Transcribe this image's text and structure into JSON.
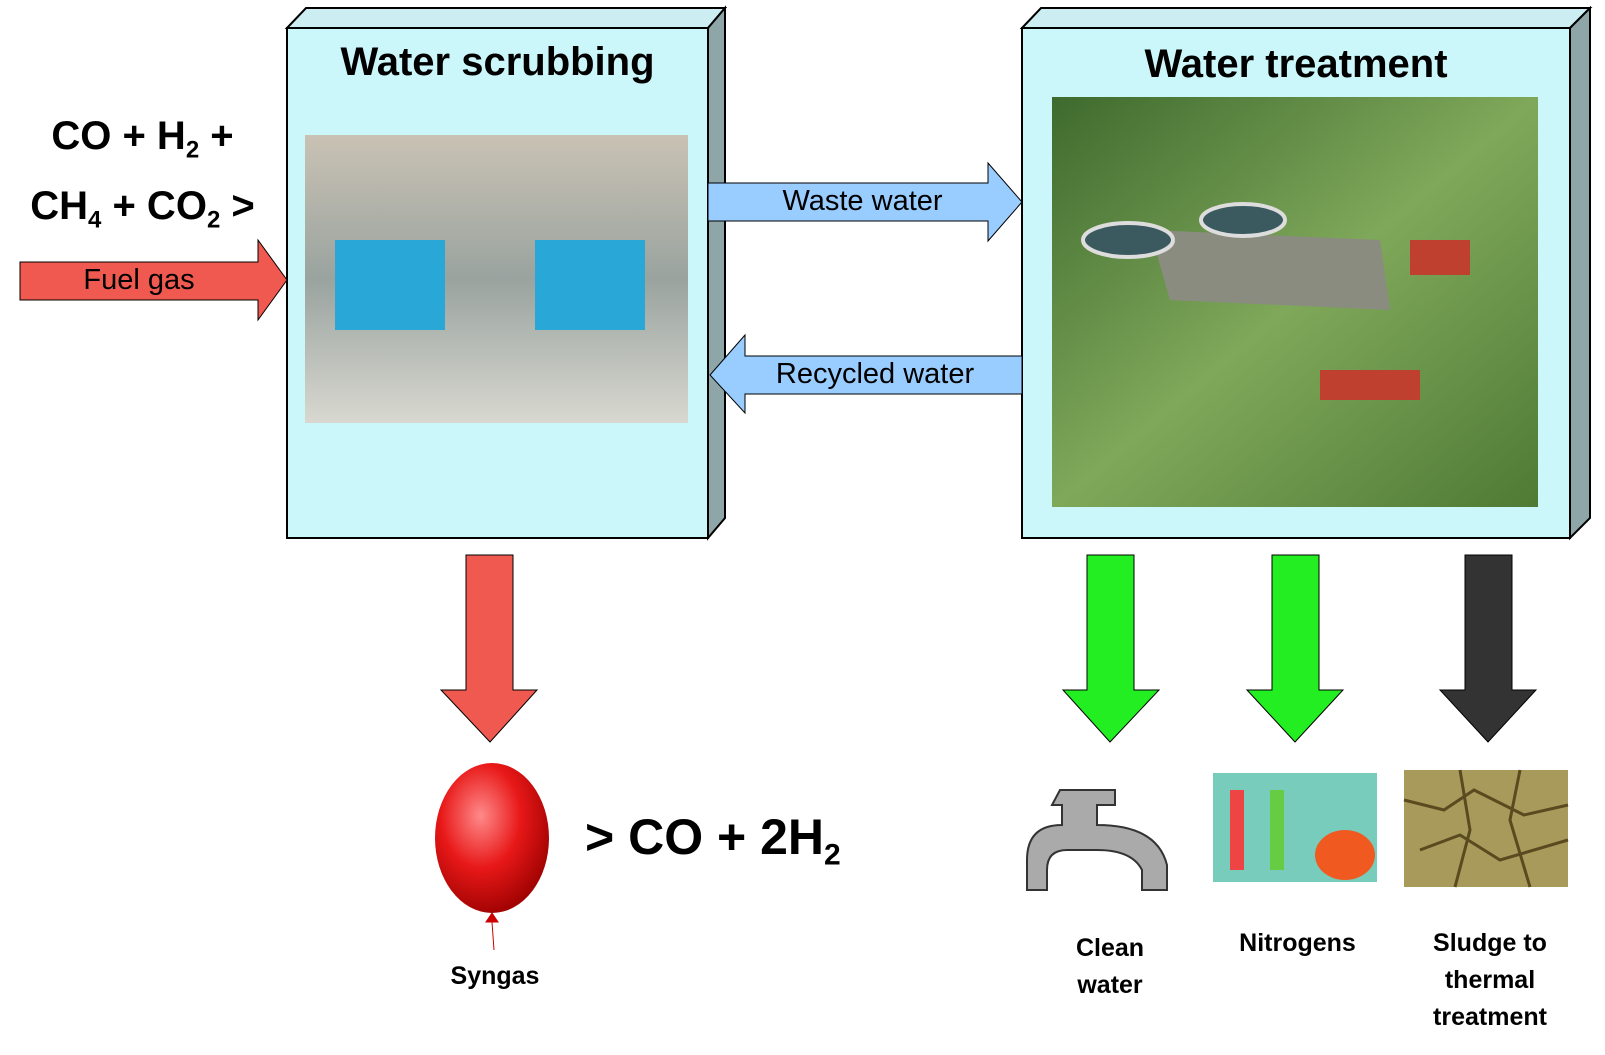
{
  "boxes": [
    {
      "title": "Water scrubbing"
    },
    {
      "title": "Water treatment"
    }
  ],
  "input": {
    "formula_lines": [
      [
        {
          "text": "CO + H"
        },
        {
          "sub": "2"
        },
        {
          "text": " +"
        }
      ],
      [
        {
          "text": "CH"
        },
        {
          "sub": "4"
        },
        {
          "text": " + CO"
        },
        {
          "sub": "2"
        },
        {
          "text": " >"
        }
      ]
    ],
    "label": "Fuel gas"
  },
  "flows": {
    "waste": "Waste water",
    "recycled": "Recycled water"
  },
  "output": {
    "formula": [
      {
        "text": "> CO + 2H"
      },
      {
        "sub": "2"
      }
    ],
    "label": "Syngas"
  },
  "products": [
    {
      "label": "Clean water"
    },
    {
      "label": "Nitrogens"
    },
    {
      "label": "Sludge to thermal treatment"
    }
  ]
}
